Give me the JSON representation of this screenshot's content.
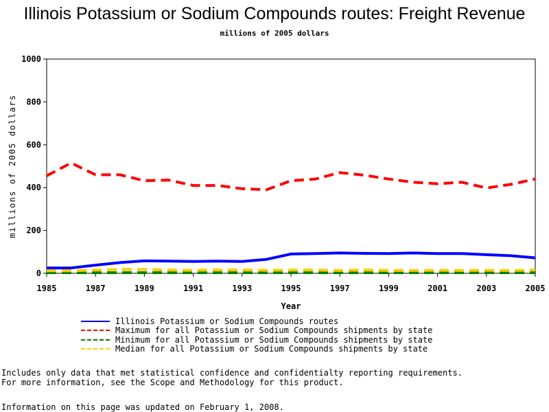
{
  "chart_data": {
    "type": "line",
    "title": "Illinois Potassium or Sodium Compounds routes: Freight Revenue",
    "subtitle": "millions of 2005 dollars",
    "xlabel": "Year",
    "ylabel": "millions of 2005 dollars",
    "xlim": [
      1985,
      2005
    ],
    "ylim": [
      0,
      1000
    ],
    "xticks": [
      1985,
      1987,
      1989,
      1991,
      1993,
      1995,
      1997,
      1999,
      2001,
      2003,
      2005
    ],
    "yticks": [
      0,
      200,
      400,
      600,
      800,
      1000
    ],
    "grid": false,
    "legend_position": "bottom",
    "x": [
      1985,
      1986,
      1987,
      1988,
      1989,
      1990,
      1991,
      1992,
      1993,
      1994,
      1995,
      1996,
      1997,
      1998,
      1999,
      2000,
      2001,
      2002,
      2003,
      2004,
      2005
    ],
    "series": [
      {
        "name": "Illinois Potassium or Sodium Compounds routes",
        "color": "#0000ff",
        "style": "solid",
        "values": [
          25,
          25,
          38,
          50,
          58,
          57,
          55,
          57,
          55,
          65,
          90,
          92,
          95,
          93,
          92,
          95,
          92,
          92,
          87,
          82,
          72
        ]
      },
      {
        "name": "Maximum for all Potassium or Sodium Compounds shipments by state",
        "color": "#ff0000",
        "style": "dashed",
        "values": [
          455,
          515,
          460,
          460,
          432,
          435,
          410,
          410,
          395,
          390,
          432,
          440,
          470,
          458,
          440,
          425,
          418,
          425,
          398,
          415,
          440
        ]
      },
      {
        "name": "Minimum for all Potassium or Sodium Compounds shipments by state",
        "color": "#008000",
        "style": "dashed",
        "values": [
          3,
          3,
          3,
          3,
          3,
          3,
          3,
          3,
          3,
          3,
          3,
          3,
          3,
          3,
          3,
          3,
          3,
          3,
          3,
          3,
          3
        ]
      },
      {
        "name": "Median for all Potassium or Sodium Compounds shipments by state",
        "color": "#ffcc00",
        "style": "dashed",
        "values": [
          12,
          12,
          15,
          18,
          18,
          15,
          14,
          15,
          15,
          14,
          15,
          15,
          13,
          15,
          13,
          13,
          14,
          13,
          14,
          13,
          15
        ]
      }
    ]
  },
  "notes": {
    "line1": "Includes only data that met statistical confidence and confidentialty reporting requirements.",
    "line2": "For more information, see the Scope and Methodology for this product."
  },
  "updated": "Information on this page was updated on February 1, 2008."
}
